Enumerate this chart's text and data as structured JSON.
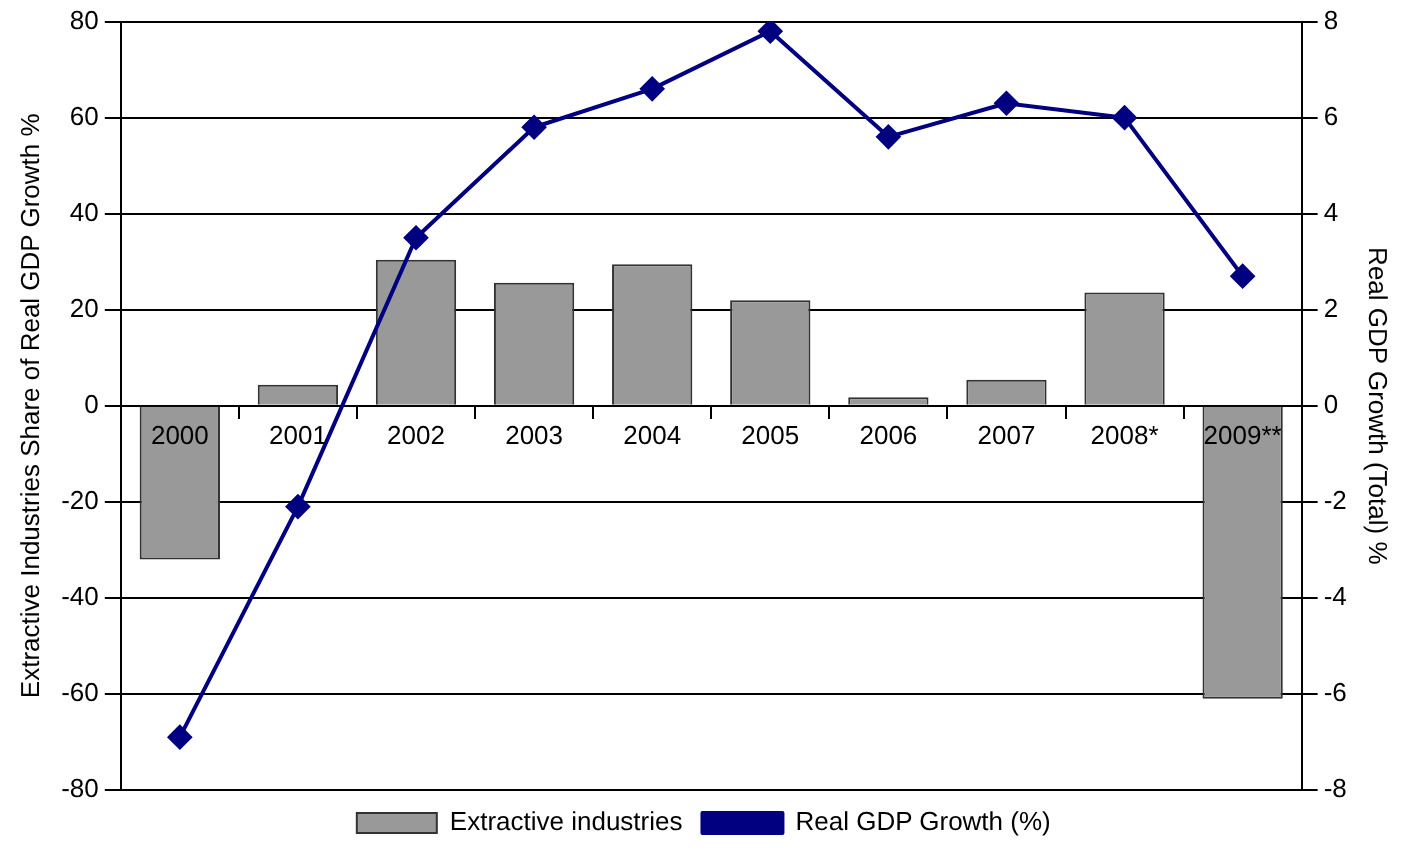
{
  "chart_data": {
    "type": "bar",
    "categories": [
      "2000",
      "2001",
      "2002",
      "2003",
      "2004",
      "2005",
      "2006",
      "2007",
      "2008*",
      "2009**"
    ],
    "series": [
      {
        "name": "Extractive industries",
        "color": "#999999",
        "values": [
          -32,
          4.4,
          30.4,
          25.6,
          29.5,
          22,
          1.8,
          5.4,
          23.6,
          -61
        ]
      },
      {
        "name": "Real GDP Growth (%)",
        "type": "line",
        "axis": "y2",
        "color": "#000080",
        "marker": "diamond",
        "values": [
          -6.9,
          -2.1,
          3.5,
          5.8,
          6.6,
          7.8,
          5.6,
          6.3,
          6.0,
          2.7
        ]
      }
    ],
    "ylabel": "Extractive Industries Share of Real GDP Growth %",
    "y2label": "Real GDP Growth (Total) %",
    "ylim": [
      -80,
      80
    ],
    "yticks": [
      -80,
      -60,
      -40,
      -20,
      0,
      20,
      40,
      60,
      80
    ],
    "y2lim": [
      -8,
      8
    ],
    "y2ticks": [
      -8,
      -6,
      -4,
      -2,
      0,
      2,
      4,
      6,
      8
    ],
    "grid": "y",
    "legend": "bottom"
  }
}
